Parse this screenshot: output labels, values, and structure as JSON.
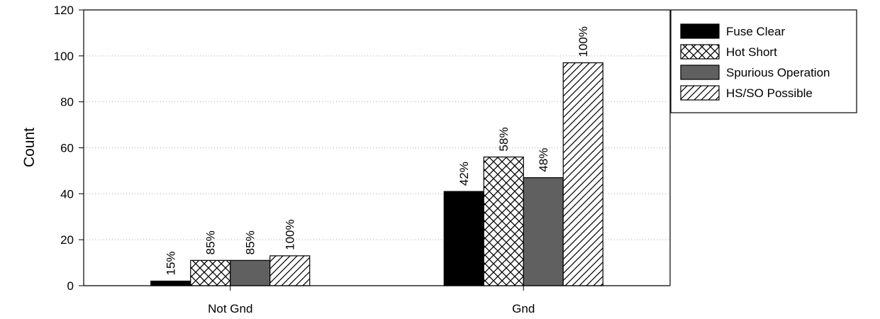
{
  "chart_data": {
    "type": "bar",
    "title": "",
    "xlabel": "",
    "ylabel": "Count",
    "ylim": [
      0,
      120
    ],
    "yticks": [
      0,
      20,
      40,
      60,
      80,
      100,
      120
    ],
    "grid": true,
    "legend_position": "top-right",
    "categories": [
      "Not Gnd",
      "Gnd"
    ],
    "series": [
      {
        "name": "Fuse Clear",
        "pattern": "solid-black",
        "values": [
          2,
          41
        ],
        "labels": [
          "15%",
          "42%"
        ]
      },
      {
        "name": "Hot Short",
        "pattern": "crosshatch",
        "values": [
          11,
          56
        ],
        "labels": [
          "85%",
          "58%"
        ]
      },
      {
        "name": "Spurious Operation",
        "pattern": "solid-gray",
        "values": [
          11,
          47
        ],
        "labels": [
          "85%",
          "48%"
        ]
      },
      {
        "name": "HS/SO Possible",
        "pattern": "diagonal-hatch",
        "values": [
          13,
          97
        ],
        "labels": [
          "100%",
          "100%"
        ]
      }
    ],
    "colors": {
      "fuse_clear": "#000000",
      "spurious_operation": "#606060",
      "axis": "#000000",
      "grid": "#aaaaaa"
    }
  }
}
